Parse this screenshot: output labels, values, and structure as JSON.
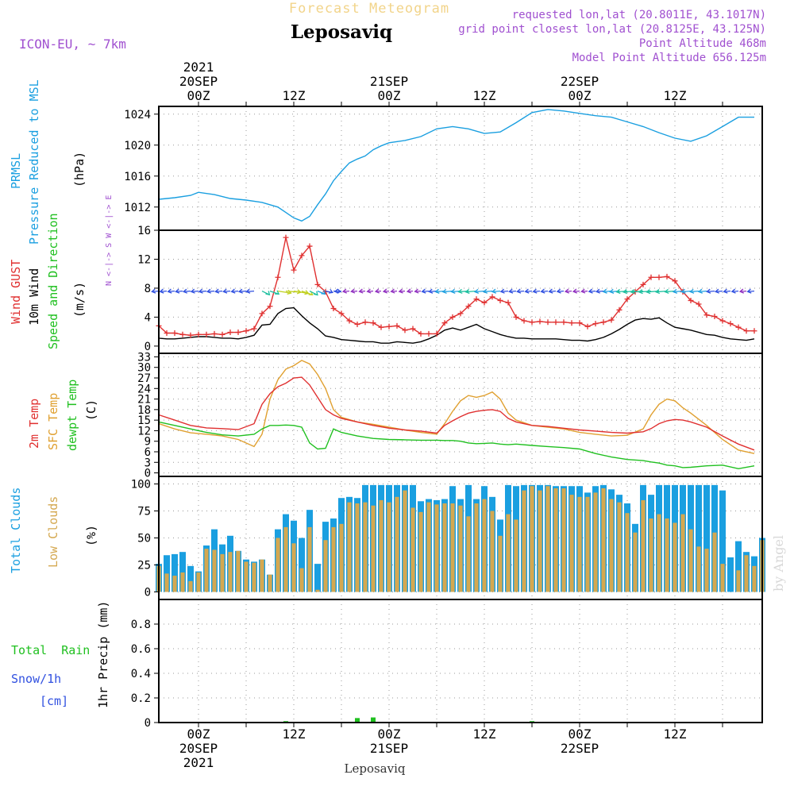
{
  "header": {
    "watermark_title": "Forecast Meteogram",
    "location": "Leposaviq",
    "model": "ICON-EU, ~ 7km",
    "requested": "requested lon,lat (20.8011E, 43.1017N)",
    "grid_point": "grid point closest lon,lat (20.8125E, 43.125N)",
    "point_altitude": "Point Altitude 468m",
    "model_altitude": "Model Point Altitude 656.125m",
    "credit": "by Angel",
    "footer_location": "Leposaviq"
  },
  "time_axis": {
    "top_labels": [
      {
        "lines": [
          "2021",
          "20SEP",
          "00Z"
        ],
        "hour": 0
      },
      {
        "lines": [
          "12Z"
        ],
        "hour": 12
      },
      {
        "lines": [
          "21SEP",
          "00Z"
        ],
        "hour": 24
      },
      {
        "lines": [
          "12Z"
        ],
        "hour": 36
      },
      {
        "lines": [
          "22SEP",
          "00Z"
        ],
        "hour": 48
      },
      {
        "lines": [
          "12Z"
        ],
        "hour": 60
      }
    ],
    "bottom_labels": [
      {
        "lines": [
          "00Z",
          "20SEP",
          "2021"
        ],
        "hour": 0
      },
      {
        "lines": [
          "12Z"
        ],
        "hour": 12
      },
      {
        "lines": [
          "00Z",
          "21SEP"
        ],
        "hour": 24
      },
      {
        "lines": [
          "12Z"
        ],
        "hour": 36
      },
      {
        "lines": [
          "00Z",
          "22SEP"
        ],
        "hour": 48
      },
      {
        "lines": [
          "12Z"
        ],
        "hour": 60
      }
    ],
    "start_hour": -5,
    "end_hour": 71,
    "gridline_hours": [
      0,
      6,
      12,
      18,
      24,
      30,
      36,
      42,
      48,
      54,
      60,
      66
    ]
  },
  "panel_labels": {
    "pressure": {
      "line1": "PRMSL",
      "line2": "Pressure Reduced to MSL",
      "unit": "(hPa)"
    },
    "wind": {
      "gust": "Wind GUST",
      "wind10": "10m Wind",
      "speed": "Speed and Direction",
      "unit": "(m/s)",
      "compass": "N <-|-> S   W <-|-> E"
    },
    "temp": {
      "t2m": "2m Temp",
      "sfc": "SFC Temp",
      "dewpt": "dewpt Temp",
      "unit": "(C)"
    },
    "clouds": {
      "total": "Total Clouds",
      "low": "Low Clouds",
      "unit": "(%)"
    },
    "precip": {
      "rain": "Total  Rain",
      "snow": "Snow/1h",
      "snow_unit": "[cm]",
      "axis": "1hr Precip (mm)"
    }
  },
  "colors": {
    "pressure": "#1a9fe0",
    "gust": "#e03030",
    "wind": "#000000",
    "temp2m": "#e03030",
    "sfc": "#e0a030",
    "dewpt": "#20c020",
    "total_clouds": "#1a9fe0",
    "low_clouds": "#d4a850",
    "rain": "#20c020",
    "purple": "#a050d0"
  },
  "chart_data": [
    {
      "type": "line",
      "title": "PRMSL Pressure Reduced to MSL",
      "ylabel": "(hPa)",
      "ylim": [
        1009,
        1025
      ],
      "yticks": [
        1012,
        1016,
        1020,
        1024
      ],
      "x": [
        -5,
        -3,
        -1,
        0,
        2,
        4,
        6,
        8,
        10,
        11,
        12,
        13,
        14,
        15,
        16,
        17,
        18,
        19,
        20,
        21,
        22,
        23,
        24,
        26,
        28,
        30,
        32,
        34,
        36,
        38,
        40,
        42,
        44,
        46,
        48,
        50,
        52,
        54,
        56,
        58,
        60,
        62,
        64,
        66,
        68,
        70
      ],
      "series": [
        {
          "name": "PRMSL",
          "values": [
            1013.0,
            1013.2,
            1013.5,
            1013.9,
            1013.6,
            1013.1,
            1012.9,
            1012.6,
            1012.0,
            1011.3,
            1010.6,
            1010.2,
            1010.8,
            1012.3,
            1013.7,
            1015.4,
            1016.6,
            1017.7,
            1018.2,
            1018.6,
            1019.4,
            1019.9,
            1020.3,
            1020.6,
            1021.1,
            1022.1,
            1022.4,
            1022.1,
            1021.5,
            1021.7,
            1022.9,
            1024.2,
            1024.6,
            1024.4,
            1024.1,
            1023.8,
            1023.6,
            1023.0,
            1022.4,
            1021.6,
            1020.9,
            1020.5,
            1021.2,
            1022.4,
            1023.6,
            1023.6
          ]
        }
      ]
    },
    {
      "type": "line",
      "title": "Wind GUST / 10m Wind",
      "ylabel": "(m/s)",
      "ylim": [
        -1,
        16
      ],
      "yticks": [
        0,
        4,
        8,
        12,
        16
      ],
      "x": [
        -5,
        -4,
        -3,
        -2,
        -1,
        0,
        1,
        2,
        3,
        4,
        5,
        6,
        7,
        8,
        9,
        10,
        11,
        12,
        13,
        14,
        15,
        16,
        17,
        18,
        19,
        20,
        21,
        22,
        23,
        24,
        25,
        26,
        27,
        28,
        29,
        30,
        31,
        32,
        33,
        34,
        35,
        36,
        37,
        38,
        39,
        40,
        41,
        42,
        43,
        44,
        45,
        46,
        47,
        48,
        49,
        50,
        51,
        52,
        53,
        54,
        55,
        56,
        57,
        58,
        59,
        60,
        61,
        62,
        63,
        64,
        65,
        66,
        67,
        68,
        69,
        70
      ],
      "series": [
        {
          "name": "Wind GUST",
          "values": [
            2.8,
            1.8,
            1.8,
            1.6,
            1.5,
            1.6,
            1.6,
            1.7,
            1.6,
            1.9,
            1.9,
            2.1,
            2.4,
            4.5,
            5.5,
            9.5,
            15.0,
            10.5,
            12.5,
            13.8,
            8.5,
            7.5,
            5.2,
            4.5,
            3.5,
            3.0,
            3.3,
            3.2,
            2.6,
            2.7,
            2.8,
            2.2,
            2.4,
            1.7,
            1.7,
            1.7,
            3.2,
            4.0,
            4.5,
            5.5,
            6.5,
            6.0,
            6.8,
            6.3,
            6.0,
            4.0,
            3.5,
            3.3,
            3.4,
            3.3,
            3.3,
            3.3,
            3.2,
            3.2,
            2.7,
            3.1,
            3.3,
            3.6,
            5.0,
            6.5,
            7.5,
            8.5,
            9.5,
            9.5,
            9.6,
            9.0,
            7.5,
            6.3,
            5.8,
            4.3,
            4.1,
            3.5,
            3.1,
            2.6,
            2.1,
            2.1
          ]
        },
        {
          "name": "10m Wind",
          "values": [
            1.1,
            1.0,
            1.0,
            1.1,
            1.2,
            1.3,
            1.3,
            1.2,
            1.1,
            1.1,
            1.0,
            1.2,
            1.5,
            2.9,
            3.0,
            4.5,
            5.2,
            5.3,
            4.2,
            3.2,
            2.4,
            1.4,
            1.2,
            0.9,
            0.8,
            0.7,
            0.6,
            0.6,
            0.4,
            0.4,
            0.6,
            0.5,
            0.4,
            0.6,
            1.0,
            1.5,
            2.2,
            2.5,
            2.2,
            2.6,
            3.0,
            2.4,
            2.0,
            1.6,
            1.3,
            1.1,
            1.1,
            1.0,
            1.0,
            1.0,
            1.0,
            0.9,
            0.8,
            0.8,
            0.7,
            0.9,
            1.2,
            1.7,
            2.3,
            3.0,
            3.6,
            3.8,
            3.7,
            3.9,
            3.2,
            2.6,
            2.4,
            2.2,
            1.9,
            1.6,
            1.5,
            1.2,
            1.0,
            0.9,
            0.8,
            1.0
          ]
        }
      ]
    },
    {
      "type": "line",
      "title": "2m Temp / SFC Temp / dewpt Temp",
      "ylabel": "(C)",
      "ylim": [
        -1,
        34
      ],
      "yticks": [
        0,
        3,
        6,
        9,
        12,
        15,
        18,
        21,
        24,
        27,
        30,
        33
      ],
      "x": [
        -5,
        -3,
        -1,
        1,
        3,
        5,
        7,
        8,
        9,
        10,
        11,
        12,
        13,
        14,
        15,
        16,
        17,
        18,
        20,
        22,
        24,
        26,
        28,
        30,
        31,
        32,
        33,
        34,
        35,
        36,
        37,
        38,
        39,
        40,
        42,
        44,
        46,
        48,
        50,
        52,
        54,
        56,
        57,
        58,
        59,
        60,
        61,
        62,
        64,
        66,
        68,
        70
      ],
      "series": [
        {
          "name": "2m Temp",
          "values": [
            16.5,
            15.0,
            13.5,
            12.8,
            12.6,
            12.3,
            14.0,
            19.5,
            22.5,
            24.5,
            25.5,
            27.0,
            27.2,
            25.0,
            21.5,
            18.0,
            16.5,
            15.5,
            14.5,
            13.5,
            12.7,
            12.2,
            11.9,
            11.3,
            13.5,
            14.8,
            16.0,
            17.0,
            17.5,
            17.8,
            18.0,
            17.5,
            15.5,
            14.5,
            13.5,
            13.2,
            12.7,
            12.2,
            11.9,
            11.5,
            11.3,
            11.7,
            12.6,
            14.0,
            14.8,
            15.2,
            15.0,
            14.5,
            13.0,
            10.5,
            8.2,
            6.5
          ]
        },
        {
          "name": "SFC Temp",
          "values": [
            14.0,
            12.5,
            11.4,
            11.0,
            10.5,
            9.5,
            7.5,
            11.0,
            21.0,
            26.5,
            29.5,
            30.5,
            32.0,
            31.0,
            28.0,
            24.0,
            18.0,
            15.8,
            14.5,
            13.8,
            13.0,
            12.2,
            11.5,
            11.0,
            14.0,
            17.5,
            20.5,
            22.0,
            21.5,
            22.0,
            23.0,
            21.0,
            17.0,
            15.0,
            13.5,
            13.0,
            12.5,
            11.5,
            11.0,
            10.5,
            10.7,
            12.5,
            16.5,
            19.5,
            21.0,
            20.5,
            18.5,
            17.0,
            13.5,
            9.5,
            6.5,
            5.5
          ]
        },
        {
          "name": "dewpt Temp",
          "values": [
            14.5,
            13.5,
            12.5,
            11.5,
            10.8,
            10.5,
            11.0,
            12.5,
            13.5,
            13.5,
            13.6,
            13.5,
            13.0,
            8.5,
            6.8,
            7.0,
            12.5,
            11.5,
            10.5,
            9.8,
            9.5,
            9.4,
            9.3,
            9.3,
            9.2,
            9.2,
            9.0,
            8.5,
            8.3,
            8.4,
            8.5,
            8.2,
            8.0,
            8.2,
            7.8,
            7.5,
            7.2,
            6.8,
            5.5,
            4.5,
            3.8,
            3.5,
            3.1,
            2.8,
            2.2,
            2.0,
            1.5,
            1.6,
            2.0,
            2.2,
            1.2,
            2.0
          ]
        }
      ]
    },
    {
      "type": "bar",
      "title": "Total Clouds / Low Clouds",
      "ylabel": "(%)",
      "ylim": [
        -7,
        107
      ],
      "yticks": [
        0,
        25,
        50,
        75,
        100
      ],
      "x": [
        -5,
        -4,
        -3,
        -2,
        -1,
        0,
        1,
        2,
        3,
        4,
        5,
        6,
        7,
        8,
        9,
        10,
        11,
        12,
        13,
        14,
        15,
        16,
        17,
        18,
        19,
        20,
        21,
        22,
        23,
        24,
        25,
        26,
        27,
        28,
        29,
        30,
        31,
        32,
        33,
        34,
        35,
        36,
        37,
        38,
        39,
        40,
        41,
        42,
        43,
        44,
        45,
        46,
        47,
        48,
        49,
        50,
        51,
        52,
        53,
        54,
        55,
        56,
        57,
        58,
        59,
        60,
        61,
        62,
        63,
        64,
        65,
        66,
        67,
        68,
        69,
        70,
        71
      ],
      "series": [
        {
          "name": "Total Clouds",
          "values": [
            26,
            34,
            35,
            37,
            24,
            19,
            43,
            58,
            44,
            52,
            38,
            30,
            28,
            30,
            16,
            58,
            72,
            66,
            50,
            76,
            26,
            65,
            68,
            87,
            88,
            87,
            99,
            99,
            99,
            99,
            99,
            99,
            99,
            84,
            86,
            85,
            86,
            98,
            86,
            99,
            86,
            98,
            88,
            67,
            99,
            98,
            99,
            99,
            99,
            99,
            98,
            98,
            98,
            98,
            92,
            98,
            99,
            95,
            90,
            82,
            63,
            99,
            90,
            99,
            99,
            99,
            99,
            99,
            99,
            99,
            99,
            94,
            32,
            47,
            37,
            33,
            50
          ]
        },
        {
          "name": "Low Clouds",
          "values": [
            24,
            17,
            15,
            18,
            10,
            18,
            40,
            39,
            35,
            37,
            38,
            28,
            27,
            30,
            16,
            50,
            60,
            45,
            22,
            60,
            2,
            48,
            60,
            63,
            83,
            82,
            83,
            80,
            85,
            83,
            88,
            94,
            78,
            74,
            83,
            81,
            82,
            82,
            80,
            70,
            82,
            86,
            75,
            52,
            72,
            67,
            94,
            98,
            94,
            98,
            96,
            96,
            90,
            88,
            88,
            92,
            96,
            86,
            83,
            73,
            55,
            85,
            68,
            72,
            68,
            64,
            72,
            58,
            42,
            40,
            55,
            26,
            0,
            20,
            34,
            24,
            48
          ]
        }
      ]
    },
    {
      "type": "bar",
      "title": "1hr Precip (mm)",
      "ylabel": "1hr Precip (mm)",
      "ylim": [
        0,
        1.0
      ],
      "yticks": [
        0,
        0.2,
        0.4,
        0.6,
        0.8
      ],
      "x": [
        11,
        20,
        22,
        42
      ],
      "series": [
        {
          "name": "Total Rain",
          "values": [
            0.005,
            0.03,
            0.035,
            0.005
          ]
        }
      ]
    }
  ]
}
